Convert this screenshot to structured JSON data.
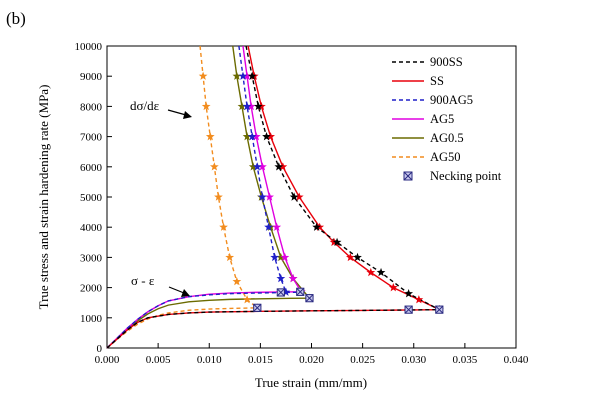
{
  "panel_label": "(b)",
  "chart_data": {
    "type": "line",
    "title": "",
    "xlabel": "True strain (mm/mm)",
    "ylabel": "True stress and strain hardening rate (MPa)",
    "xlim": [
      0.0,
      0.04
    ],
    "ylim": [
      0,
      10000
    ],
    "x_ticks": [
      "0.000",
      "0.005",
      "0.010",
      "0.015",
      "0.020",
      "0.025",
      "0.030",
      "0.035",
      "0.040"
    ],
    "y_ticks": [
      "0",
      "1000",
      "2000",
      "3000",
      "4000",
      "5000",
      "6000",
      "7000",
      "8000",
      "9000",
      "10000"
    ],
    "grid": false,
    "legend_position": "top-right",
    "annotations": [
      "dσ/dε",
      "σ - ε"
    ],
    "series": [
      {
        "name": "900SS",
        "color": "#000000",
        "dash": "dashed",
        "marker": "star",
        "stress": [
          [
            0,
            0
          ],
          [
            0.001,
            300
          ],
          [
            0.002,
            600
          ],
          [
            0.003,
            850
          ],
          [
            0.004,
            1000
          ],
          [
            0.006,
            1110
          ],
          [
            0.008,
            1160
          ],
          [
            0.01,
            1190
          ],
          [
            0.015,
            1215
          ],
          [
            0.02,
            1230
          ],
          [
            0.025,
            1245
          ],
          [
            0.03,
            1260
          ],
          [
            0.0325,
            1270
          ]
        ],
        "hardening": [
          [
            0.0136,
            10000
          ],
          [
            0.0142,
            9000
          ],
          [
            0.0148,
            8000
          ],
          [
            0.0156,
            7000
          ],
          [
            0.0168,
            6000
          ],
          [
            0.0183,
            5000
          ],
          [
            0.0205,
            4000
          ],
          [
            0.0225,
            3500
          ],
          [
            0.0245,
            3000
          ],
          [
            0.0268,
            2500
          ],
          [
            0.0295,
            1800
          ],
          [
            0.0325,
            1270
          ]
        ]
      },
      {
        "name": "SS",
        "color": "#e8000b",
        "dash": "solid",
        "marker": "star",
        "stress": [
          [
            0,
            0
          ],
          [
            0.001,
            300
          ],
          [
            0.002,
            600
          ],
          [
            0.003,
            850
          ],
          [
            0.004,
            1000
          ],
          [
            0.006,
            1110
          ],
          [
            0.008,
            1160
          ],
          [
            0.01,
            1190
          ],
          [
            0.015,
            1215
          ],
          [
            0.02,
            1230
          ],
          [
            0.025,
            1245
          ],
          [
            0.03,
            1260
          ],
          [
            0.0325,
            1270
          ]
        ],
        "hardening": [
          [
            0.0138,
            10000
          ],
          [
            0.0144,
            9000
          ],
          [
            0.0151,
            8000
          ],
          [
            0.016,
            7000
          ],
          [
            0.0172,
            6000
          ],
          [
            0.0188,
            5000
          ],
          [
            0.0208,
            4000
          ],
          [
            0.0222,
            3500
          ],
          [
            0.0238,
            3000
          ],
          [
            0.0258,
            2500
          ],
          [
            0.028,
            2000
          ],
          [
            0.0305,
            1600
          ],
          [
            0.0325,
            1270
          ]
        ]
      },
      {
        "name": "900AG5",
        "color": "#1f1fc8",
        "dash": "dashed",
        "marker": "star",
        "stress": [
          [
            0,
            0
          ],
          [
            0.001,
            330
          ],
          [
            0.002,
            660
          ],
          [
            0.003,
            950
          ],
          [
            0.004,
            1200
          ],
          [
            0.005,
            1400
          ],
          [
            0.006,
            1560
          ],
          [
            0.008,
            1700
          ],
          [
            0.01,
            1760
          ],
          [
            0.012,
            1800
          ],
          [
            0.0145,
            1820
          ],
          [
            0.017,
            1835
          ],
          [
            0.0185,
            1845
          ]
        ],
        "hardening": [
          [
            0.0129,
            10000
          ],
          [
            0.0133,
            9000
          ],
          [
            0.0137,
            8000
          ],
          [
            0.0142,
            7000
          ],
          [
            0.0147,
            6000
          ],
          [
            0.0152,
            5000
          ],
          [
            0.0158,
            4000
          ],
          [
            0.0164,
            3000
          ],
          [
            0.017,
            2300
          ],
          [
            0.0175,
            1850
          ]
        ]
      },
      {
        "name": "AG5",
        "color": "#e000e0",
        "dash": "solid",
        "marker": "star",
        "stress": [
          [
            0,
            0
          ],
          [
            0.001,
            330
          ],
          [
            0.002,
            660
          ],
          [
            0.003,
            950
          ],
          [
            0.004,
            1200
          ],
          [
            0.005,
            1400
          ],
          [
            0.006,
            1560
          ],
          [
            0.008,
            1700
          ],
          [
            0.01,
            1780
          ],
          [
            0.012,
            1820
          ],
          [
            0.014,
            1840
          ],
          [
            0.016,
            1850
          ],
          [
            0.0185,
            1860
          ]
        ],
        "hardening": [
          [
            0.0133,
            10000
          ],
          [
            0.0137,
            9000
          ],
          [
            0.0141,
            8000
          ],
          [
            0.0146,
            7000
          ],
          [
            0.0152,
            6000
          ],
          [
            0.0159,
            5000
          ],
          [
            0.0166,
            4000
          ],
          [
            0.0174,
            3000
          ],
          [
            0.0182,
            2300
          ],
          [
            0.019,
            1860
          ]
        ]
      },
      {
        "name": "AG0.5",
        "color": "#6b6b00",
        "dash": "solid",
        "marker": "star",
        "stress": [
          [
            0,
            0
          ],
          [
            0.001,
            320
          ],
          [
            0.002,
            640
          ],
          [
            0.003,
            900
          ],
          [
            0.004,
            1130
          ],
          [
            0.005,
            1300
          ],
          [
            0.006,
            1420
          ],
          [
            0.008,
            1530
          ],
          [
            0.01,
            1580
          ],
          [
            0.012,
            1610
          ],
          [
            0.015,
            1630
          ],
          [
            0.018,
            1645
          ],
          [
            0.0198,
            1650
          ]
        ],
        "hardening": [
          [
            0.0123,
            10000
          ],
          [
            0.0127,
            9000
          ],
          [
            0.0132,
            8000
          ],
          [
            0.0137,
            7000
          ],
          [
            0.0143,
            6000
          ],
          [
            0.0151,
            5000
          ],
          [
            0.016,
            4000
          ],
          [
            0.017,
            3000
          ],
          [
            0.0182,
            2300
          ],
          [
            0.0198,
            1650
          ]
        ]
      },
      {
        "name": "AG50",
        "color": "#f28c1e",
        "dash": "dashed",
        "marker": "star",
        "stress": [
          [
            0,
            0
          ],
          [
            0.001,
            290
          ],
          [
            0.002,
            560
          ],
          [
            0.003,
            790
          ],
          [
            0.004,
            960
          ],
          [
            0.005,
            1080
          ],
          [
            0.006,
            1160
          ],
          [
            0.008,
            1250
          ],
          [
            0.01,
            1290
          ],
          [
            0.012,
            1310
          ],
          [
            0.014,
            1325
          ],
          [
            0.0147,
            1330
          ]
        ],
        "hardening": [
          [
            0.0091,
            10000
          ],
          [
            0.0094,
            9000
          ],
          [
            0.0097,
            8000
          ],
          [
            0.0101,
            7000
          ],
          [
            0.0105,
            6000
          ],
          [
            0.0109,
            5000
          ],
          [
            0.0114,
            4000
          ],
          [
            0.012,
            3000
          ],
          [
            0.0127,
            2200
          ],
          [
            0.0137,
            1600
          ],
          [
            0.0147,
            1330
          ]
        ]
      }
    ],
    "necking_point_legend": "Necking point",
    "necking_points": [
      {
        "x": 0.0325,
        "y": 1270
      },
      {
        "x": 0.0295,
        "y": 1270
      },
      {
        "x": 0.0198,
        "y": 1650
      },
      {
        "x": 0.0189,
        "y": 1860
      },
      {
        "x": 0.017,
        "y": 1840
      },
      {
        "x": 0.0147,
        "y": 1330
      }
    ]
  }
}
